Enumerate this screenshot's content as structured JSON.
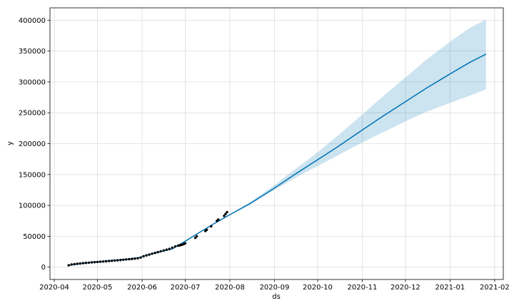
{
  "chart_data": {
    "type": "line",
    "title": "",
    "xlabel": "ds",
    "ylabel": "y",
    "x_axis_type": "date",
    "xlim": [
      "2020-03-29",
      "2021-02-07"
    ],
    "ylim": [
      -20000,
      420000
    ],
    "grid": true,
    "legend": "none",
    "x_ticks": [
      "2020-04",
      "2020-05",
      "2020-06",
      "2020-07",
      "2020-08",
      "2020-09",
      "2020-10",
      "2020-11",
      "2020-12",
      "2021-01",
      "2021-02"
    ],
    "y_ticks": [
      0,
      50000,
      100000,
      150000,
      200000,
      250000,
      300000,
      350000,
      400000
    ],
    "colors": {
      "forecast": "#0072B2",
      "interval": "#0072B2",
      "observed": "#000000"
    },
    "forecast": {
      "x": [
        "2020-04-11",
        "2020-04-20",
        "2020-05-01",
        "2020-05-10",
        "2020-05-20",
        "2020-05-30",
        "2020-06-05",
        "2020-06-15",
        "2020-06-22",
        "2020-07-01",
        "2020-07-10",
        "2020-07-20",
        "2020-08-01",
        "2020-08-15",
        "2020-09-01",
        "2020-09-15",
        "2020-10-01",
        "2020-10-15",
        "2020-11-01",
        "2020-11-15",
        "2020-12-01",
        "2020-12-15",
        "2021-01-01",
        "2021-01-15",
        "2021-01-26"
      ],
      "y": [
        3000,
        6000,
        8500,
        10500,
        12500,
        15500,
        20000,
        25500,
        29500,
        42000,
        55000,
        69000,
        85000,
        103000,
        128000,
        150000,
        174000,
        195000,
        222000,
        244000,
        268000,
        289000,
        313000,
        332000,
        345000
      ],
      "lower": [
        3000,
        6000,
        8500,
        10500,
        12500,
        15500,
        20000,
        25500,
        29500,
        42000,
        54500,
        68000,
        84000,
        101000,
        125000,
        144000,
        164000,
        181000,
        202000,
        218000,
        236000,
        251000,
        266000,
        278000,
        288000
      ],
      "upper": [
        3000,
        6000,
        8500,
        10500,
        12500,
        15500,
        20000,
        25500,
        29500,
        42000,
        55500,
        70000,
        86000,
        105000,
        133000,
        158000,
        186000,
        213000,
        247000,
        276000,
        307000,
        335000,
        365000,
        388000,
        401000
      ]
    },
    "observed": {
      "x": [
        "2020-04-11",
        "2020-04-13",
        "2020-04-15",
        "2020-04-17",
        "2020-04-19",
        "2020-04-21",
        "2020-04-23",
        "2020-04-25",
        "2020-04-27",
        "2020-04-29",
        "2020-05-01",
        "2020-05-03",
        "2020-05-05",
        "2020-05-07",
        "2020-05-09",
        "2020-05-11",
        "2020-05-13",
        "2020-05-15",
        "2020-05-17",
        "2020-05-19",
        "2020-05-21",
        "2020-05-23",
        "2020-05-25",
        "2020-05-27",
        "2020-05-29",
        "2020-05-31",
        "2020-06-02",
        "2020-06-04",
        "2020-06-06",
        "2020-06-08",
        "2020-06-10",
        "2020-06-12",
        "2020-06-14",
        "2020-06-16",
        "2020-06-18",
        "2020-06-20",
        "2020-06-22",
        "2020-06-24",
        "2020-06-26",
        "2020-06-27",
        "2020-06-28",
        "2020-06-29",
        "2020-06-30",
        "2020-07-01",
        "2020-07-08",
        "2020-07-09",
        "2020-07-15",
        "2020-07-16",
        "2020-07-19",
        "2020-07-23",
        "2020-07-24",
        "2020-07-28",
        "2020-07-29",
        "2020-07-30"
      ],
      "y": [
        3000,
        4200,
        4800,
        5400,
        5900,
        6400,
        6900,
        7300,
        7700,
        8100,
        8400,
        8700,
        9100,
        9500,
        9900,
        10300,
        10700,
        11100,
        11500,
        12000,
        12400,
        12800,
        13300,
        13800,
        14300,
        15500,
        17500,
        19000,
        20300,
        21800,
        23100,
        24400,
        25700,
        27000,
        28300,
        29600,
        31500,
        33500,
        34800,
        35200,
        35800,
        36500,
        37500,
        38500,
        47500,
        50000,
        58500,
        60500,
        66000,
        75000,
        77000,
        83000,
        86000,
        89000
      ]
    }
  }
}
